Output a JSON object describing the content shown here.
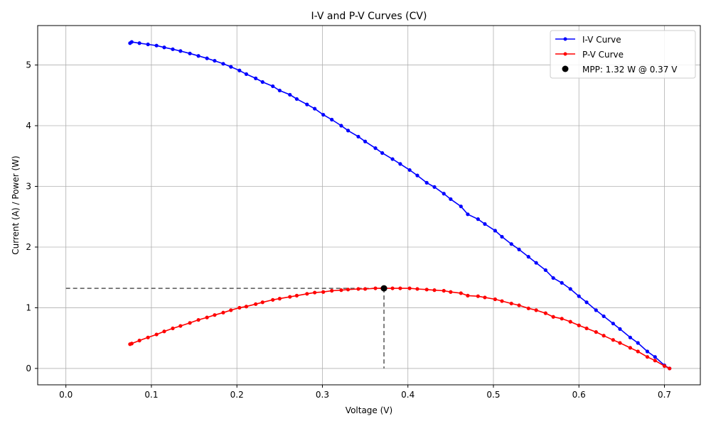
{
  "chart_data": {
    "type": "line",
    "title": "I-V and P-V Curves (CV)",
    "xlabel": "Voltage (V)",
    "ylabel": "Current (A) / Power (W)",
    "xlim": [
      -0.033,
      0.742
    ],
    "ylim": [
      -0.27,
      5.65
    ],
    "xticks": [
      0.0,
      0.1,
      0.2,
      0.3,
      0.4,
      0.5,
      0.6,
      0.7
    ],
    "xtick_labels": [
      "0.0",
      "0.1",
      "0.2",
      "0.3",
      "0.4",
      "0.5",
      "0.6",
      "0.7"
    ],
    "yticks": [
      0,
      1,
      2,
      3,
      4,
      5
    ],
    "ytick_labels": [
      "0",
      "1",
      "2",
      "3",
      "4",
      "5"
    ],
    "grid": true,
    "legend_position": "top-right",
    "series": [
      {
        "name": "I-V Curve",
        "color": "#0000ff",
        "marker": "circle",
        "x": [
          0.075,
          0.077,
          0.086,
          0.096,
          0.106,
          0.115,
          0.125,
          0.134,
          0.145,
          0.155,
          0.165,
          0.174,
          0.184,
          0.193,
          0.203,
          0.211,
          0.222,
          0.23,
          0.242,
          0.25,
          0.262,
          0.27,
          0.282,
          0.291,
          0.301,
          0.311,
          0.322,
          0.33,
          0.342,
          0.35,
          0.362,
          0.37,
          0.382,
          0.391,
          0.402,
          0.411,
          0.422,
          0.431,
          0.442,
          0.45,
          0.462,
          0.47,
          0.482,
          0.49,
          0.502,
          0.51,
          0.521,
          0.53,
          0.541,
          0.55,
          0.561,
          0.57,
          0.58,
          0.59,
          0.6,
          0.609,
          0.62,
          0.629,
          0.64,
          0.648,
          0.66,
          0.669,
          0.68,
          0.689,
          0.7,
          0.706
        ],
        "y": [
          5.36,
          5.38,
          5.36,
          5.34,
          5.32,
          5.29,
          5.26,
          5.23,
          5.19,
          5.15,
          5.11,
          5.07,
          5.02,
          4.97,
          4.91,
          4.85,
          4.78,
          4.72,
          4.65,
          4.58,
          4.51,
          4.44,
          4.35,
          4.28,
          4.18,
          4.1,
          4.0,
          3.92,
          3.82,
          3.74,
          3.63,
          3.55,
          3.45,
          3.37,
          3.27,
          3.18,
          3.06,
          2.99,
          2.88,
          2.79,
          2.67,
          2.54,
          2.46,
          2.38,
          2.27,
          2.17,
          2.05,
          1.96,
          1.84,
          1.74,
          1.62,
          1.49,
          1.41,
          1.31,
          1.19,
          1.09,
          0.96,
          0.86,
          0.74,
          0.65,
          0.51,
          0.42,
          0.28,
          0.19,
          0.05,
          0.0
        ]
      },
      {
        "name": "P-V Curve",
        "color": "#ff0000",
        "marker": "circle",
        "x": [
          0.075,
          0.077,
          0.086,
          0.096,
          0.106,
          0.115,
          0.125,
          0.134,
          0.145,
          0.155,
          0.165,
          0.174,
          0.184,
          0.193,
          0.203,
          0.211,
          0.222,
          0.23,
          0.242,
          0.25,
          0.262,
          0.27,
          0.282,
          0.291,
          0.301,
          0.311,
          0.322,
          0.33,
          0.342,
          0.35,
          0.362,
          0.37,
          0.382,
          0.391,
          0.402,
          0.411,
          0.422,
          0.431,
          0.442,
          0.45,
          0.462,
          0.47,
          0.482,
          0.49,
          0.502,
          0.51,
          0.521,
          0.53,
          0.541,
          0.55,
          0.561,
          0.57,
          0.58,
          0.59,
          0.6,
          0.609,
          0.62,
          0.629,
          0.64,
          0.648,
          0.66,
          0.669,
          0.68,
          0.689,
          0.7,
          0.706
        ],
        "y": [
          0.4,
          0.41,
          0.46,
          0.51,
          0.56,
          0.61,
          0.66,
          0.7,
          0.75,
          0.8,
          0.84,
          0.88,
          0.92,
          0.96,
          1.0,
          1.02,
          1.06,
          1.09,
          1.13,
          1.15,
          1.18,
          1.2,
          1.23,
          1.25,
          1.26,
          1.28,
          1.29,
          1.3,
          1.31,
          1.31,
          1.32,
          1.32,
          1.32,
          1.32,
          1.32,
          1.31,
          1.3,
          1.29,
          1.28,
          1.26,
          1.24,
          1.2,
          1.19,
          1.17,
          1.14,
          1.11,
          1.07,
          1.04,
          0.99,
          0.96,
          0.91,
          0.85,
          0.82,
          0.77,
          0.71,
          0.66,
          0.6,
          0.54,
          0.47,
          0.42,
          0.34,
          0.28,
          0.19,
          0.13,
          0.04,
          0.0
        ]
      }
    ],
    "mpp": {
      "label": "MPP: 1.32 W @ 0.37 V",
      "x": 0.372,
      "y": 1.32,
      "color": "#000000"
    },
    "reference_lines_color": "#555555"
  }
}
